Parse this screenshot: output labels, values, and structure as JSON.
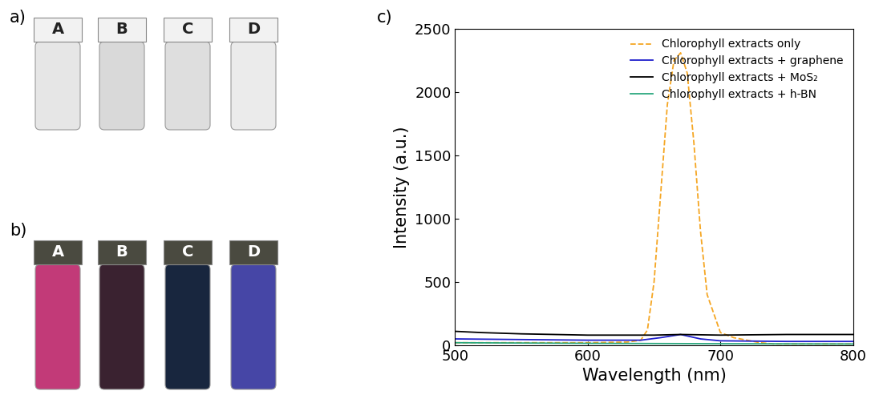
{
  "panels": [
    {
      "label": "a)",
      "vials": [
        "A",
        "B",
        "C",
        "D"
      ],
      "colors": [
        "#e6e6e6",
        "#d9d9d9",
        "#dedede",
        "#ebebeb"
      ]
    },
    {
      "label": "b)",
      "vials": [
        "A",
        "B",
        "C",
        "D"
      ],
      "colors": [
        "#c23a78",
        "#3a2230",
        "#18263e",
        "#4646a6"
      ]
    }
  ],
  "chart_data": {
    "type": "line",
    "title": "c)",
    "x_label": "Wavelength (nm)",
    "y_label": "Intensity (a.u.)",
    "xlim": [
      500,
      800
    ],
    "xticks": [
      500,
      600,
      700,
      800
    ],
    "ylim": [
      0,
      2500
    ],
    "yticks": [
      0,
      500,
      1000,
      1500,
      2000,
      2500
    ],
    "legend": "upper right",
    "series": [
      {
        "name": "Chlorophyll extracts only",
        "color": "#f5a623",
        "line_style": "dashed",
        "x": [
          500,
          550,
          600,
          630,
          640,
          645,
          650,
          655,
          660,
          665,
          670,
          675,
          680,
          685,
          690,
          700,
          710,
          720,
          730,
          740,
          800
        ],
        "values": [
          20,
          20,
          20,
          25,
          40,
          120,
          500,
          1200,
          1900,
          2250,
          2310,
          2150,
          1600,
          900,
          400,
          100,
          60,
          40,
          20,
          10,
          10
        ]
      },
      {
        "name": "Chlorophyll extracts + graphene",
        "color": "#1f1fcc",
        "line_style": "solid",
        "x": [
          500,
          550,
          600,
          640,
          655,
          670,
          685,
          700,
          750,
          800
        ],
        "values": [
          50,
          45,
          40,
          40,
          60,
          85,
          50,
          35,
          30,
          30
        ]
      },
      {
        "name": "Chlorophyll extracts + MoS₂",
        "color": "#000000",
        "line_style": "solid",
        "x": [
          500,
          520,
          550,
          600,
          650,
          670,
          700,
          750,
          800
        ],
        "values": [
          110,
          100,
          90,
          80,
          80,
          85,
          80,
          85,
          85
        ]
      },
      {
        "name": "Chlorophyll extracts + h-BN",
        "color": "#2ca87f",
        "line_style": "solid",
        "x": [
          500,
          600,
          700,
          800
        ],
        "values": [
          20,
          15,
          12,
          10
        ]
      }
    ]
  }
}
